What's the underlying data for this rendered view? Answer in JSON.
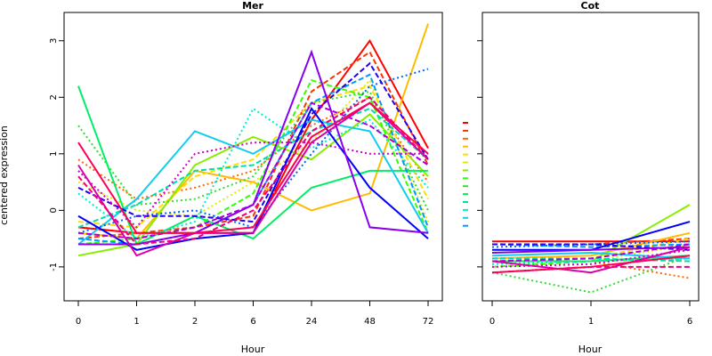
{
  "chart_data": [
    {
      "type": "line",
      "title": "Mer",
      "xlabel": "Hour",
      "ylabel": "centered expression",
      "categories": [
        "0",
        "1",
        "2",
        "6",
        "24",
        "48",
        "72"
      ],
      "yticks": [
        -1,
        0,
        1,
        2,
        3
      ],
      "ylim": [
        -1.6,
        3.5
      ],
      "grid": false,
      "series": [
        {
          "color": "#ff0000",
          "dash": "solid",
          "values": [
            -0.3,
            -0.4,
            -0.4,
            -0.4,
            1.6,
            3.0,
            1.1
          ]
        },
        {
          "color": "#ff3300",
          "dash": "dashed",
          "values": [
            -0.5,
            -0.4,
            -0.3,
            -0.1,
            2.1,
            2.8,
            0.8
          ]
        },
        {
          "color": "#ff6600",
          "dash": "dotted",
          "values": [
            0.9,
            0.2,
            0.4,
            0.7,
            1.5,
            2.0,
            0.5
          ]
        },
        {
          "color": "#ffbb00",
          "dash": "solid",
          "values": [
            -0.4,
            -0.5,
            0.7,
            0.5,
            0.0,
            0.3,
            3.3
          ]
        },
        {
          "color": "#ffdd00",
          "dash": "dashed",
          "values": [
            -0.2,
            -0.3,
            0.6,
            0.9,
            1.9,
            2.2,
            0.2
          ]
        },
        {
          "color": "#ddee00",
          "dash": "dotted",
          "values": [
            0.5,
            0.0,
            -0.1,
            0.5,
            1.2,
            2.3,
            -0.2
          ]
        },
        {
          "color": "#88ee00",
          "dash": "solid",
          "values": [
            -0.8,
            -0.6,
            0.8,
            1.3,
            0.9,
            1.7,
            0.6
          ]
        },
        {
          "color": "#33ff00",
          "dash": "dashed",
          "values": [
            -0.6,
            -0.5,
            -0.3,
            0.3,
            2.3,
            2.0,
            -0.4
          ]
        },
        {
          "color": "#33dd33",
          "dash": "dotted",
          "values": [
            1.5,
            0.1,
            0.2,
            0.6,
            1.9,
            2.1,
            0.0
          ]
        },
        {
          "color": "#00ee66",
          "dash": "solid",
          "values": [
            2.2,
            -0.6,
            -0.1,
            -0.5,
            0.4,
            0.7,
            0.7
          ]
        },
        {
          "color": "#00ddaa",
          "dash": "dashed",
          "values": [
            -0.3,
            0.1,
            0.7,
            0.8,
            1.4,
            1.8,
            0.9
          ]
        },
        {
          "color": "#00eecc",
          "dash": "dotted",
          "values": [
            0.3,
            -0.5,
            -0.2,
            1.8,
            1.1,
            1.6,
            0.4
          ]
        },
        {
          "color": "#11ccee",
          "dash": "solid",
          "values": [
            -0.6,
            0.2,
            1.4,
            1.0,
            1.6,
            1.4,
            -0.4
          ]
        },
        {
          "color": "#0099ff",
          "dash": "dashed",
          "values": [
            -0.5,
            -0.6,
            -0.4,
            0.1,
            1.9,
            2.4,
            -0.3
          ]
        },
        {
          "color": "#0066ff",
          "dash": "dotted",
          "values": [
            -0.4,
            -0.1,
            0.0,
            -0.3,
            1.0,
            2.2,
            2.5
          ]
        },
        {
          "color": "#0000ff",
          "dash": "solid",
          "values": [
            -0.1,
            -0.7,
            -0.5,
            -0.4,
            1.8,
            0.4,
            -0.5
          ]
        },
        {
          "color": "#2200ee",
          "dash": "dashed",
          "values": [
            0.4,
            -0.1,
            -0.1,
            -0.2,
            1.7,
            2.6,
            0.9
          ]
        },
        {
          "color": "#8800ee",
          "dash": "solid",
          "values": [
            -0.6,
            -0.6,
            -0.4,
            0.1,
            2.8,
            -0.3,
            -0.4
          ]
        },
        {
          "color": "#aa00dd",
          "dash": "dashed",
          "values": [
            -0.4,
            -0.5,
            -0.3,
            0.1,
            1.9,
            1.5,
            0.8
          ]
        },
        {
          "color": "#cc00cc",
          "dash": "dotted",
          "values": [
            0.7,
            -0.3,
            1.0,
            1.2,
            1.2,
            1.0,
            1.0
          ]
        },
        {
          "color": "#dd00aa",
          "dash": "solid",
          "values": [
            0.8,
            -0.8,
            -0.4,
            -0.4,
            1.2,
            1.9,
            0.9
          ]
        },
        {
          "color": "#ee0077",
          "dash": "dashed",
          "values": [
            0.6,
            -0.6,
            -0.5,
            0.0,
            1.4,
            2.0,
            0.9
          ]
        },
        {
          "color": "#ff0055",
          "dash": "solid",
          "values": [
            1.2,
            -0.4,
            -0.4,
            -0.3,
            1.3,
            1.9,
            1.0
          ]
        }
      ]
    },
    {
      "type": "line",
      "title": "Cot",
      "xlabel": "Hour",
      "ylabel": "",
      "categories": [
        "0",
        "1",
        "6"
      ],
      "yticks": [
        -1,
        0,
        1,
        2,
        3
      ],
      "ylim": [
        -1.6,
        3.5
      ],
      "grid": false,
      "series": [
        {
          "color": "#ff0000",
          "dash": "solid",
          "values": [
            -0.55,
            -0.55,
            -0.55
          ]
        },
        {
          "color": "#ff3300",
          "dash": "dashed",
          "values": [
            -0.6,
            -0.6,
            -0.5
          ]
        },
        {
          "color": "#ff6600",
          "dash": "dotted",
          "values": [
            -0.9,
            -0.9,
            -1.2
          ]
        },
        {
          "color": "#ffbb00",
          "dash": "solid",
          "values": [
            -0.85,
            -0.8,
            -0.4
          ]
        },
        {
          "color": "#ffdd00",
          "dash": "dashed",
          "values": [
            -0.9,
            -0.85,
            -0.5
          ]
        },
        {
          "color": "#ddee00",
          "dash": "dotted",
          "values": [
            -0.95,
            -0.9,
            -0.6
          ]
        },
        {
          "color": "#88ee00",
          "dash": "solid",
          "values": [
            -0.9,
            -0.9,
            0.1
          ]
        },
        {
          "color": "#33ff00",
          "dash": "dashed",
          "values": [
            -1.0,
            -0.9,
            -0.85
          ]
        },
        {
          "color": "#33dd33",
          "dash": "dotted",
          "values": [
            -1.1,
            -1.45,
            -0.8
          ]
        },
        {
          "color": "#00ee66",
          "dash": "solid",
          "values": [
            -0.9,
            -0.9,
            -0.8
          ]
        },
        {
          "color": "#00ddaa",
          "dash": "dashed",
          "values": [
            -0.85,
            -0.85,
            -0.9
          ]
        },
        {
          "color": "#00eecc",
          "dash": "dotted",
          "values": [
            -0.95,
            -0.9,
            -0.85
          ]
        },
        {
          "color": "#11ccee",
          "dash": "solid",
          "values": [
            -0.8,
            -0.75,
            -0.85
          ]
        },
        {
          "color": "#0099ff",
          "dash": "dashed",
          "values": [
            -0.6,
            -0.65,
            -0.6
          ]
        },
        {
          "color": "#0066ff",
          "dash": "dotted",
          "values": [
            -0.65,
            -0.6,
            -0.55
          ]
        },
        {
          "color": "#0000ff",
          "dash": "solid",
          "values": [
            -0.7,
            -0.7,
            -0.2
          ]
        },
        {
          "color": "#2200ee",
          "dash": "dashed",
          "values": [
            -0.6,
            -0.6,
            -0.7
          ]
        },
        {
          "color": "#8800ee",
          "dash": "solid",
          "values": [
            -0.75,
            -0.7,
            -0.65
          ]
        },
        {
          "color": "#aa00dd",
          "dash": "dashed",
          "values": [
            -0.9,
            -0.85,
            -0.6
          ]
        },
        {
          "color": "#cc00cc",
          "dash": "dotted",
          "values": [
            -1.0,
            -0.95,
            -0.7
          ]
        },
        {
          "color": "#dd00aa",
          "dash": "solid",
          "values": [
            -0.9,
            -1.1,
            -0.65
          ]
        },
        {
          "color": "#ee0077",
          "dash": "dashed",
          "values": [
            -1.1,
            -1.0,
            -1.0
          ]
        },
        {
          "color": "#ff0055",
          "dash": "solid",
          "values": [
            -1.1,
            -1.0,
            -0.8
          ]
        }
      ]
    }
  ],
  "legend": {
    "placement": "between panels",
    "colors": [
      "#ff0000",
      "#ff3300",
      "#ff6600",
      "#ffbb00",
      "#ffdd00",
      "#ddee00",
      "#88ee00",
      "#33ff00",
      "#33dd33",
      "#00ee66",
      "#00ddaa",
      "#00eecc",
      "#11ccee",
      "#0099ff"
    ]
  }
}
